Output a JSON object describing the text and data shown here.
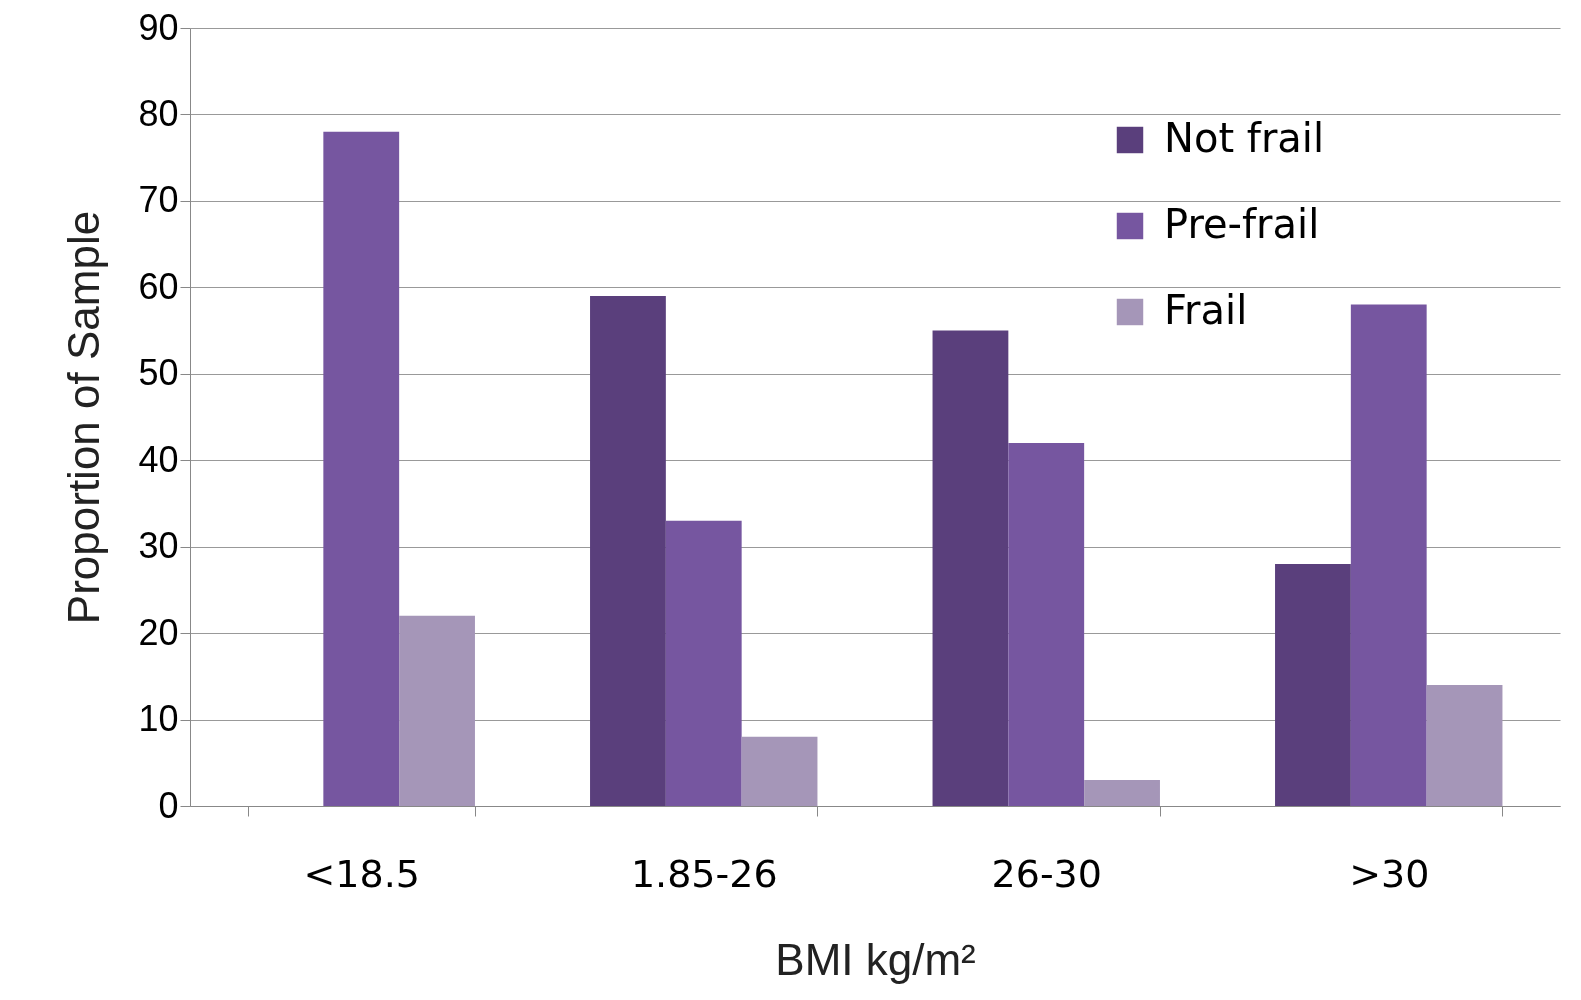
{
  "chart_data": {
    "type": "bar",
    "xlabel": "BMI kg/m²",
    "ylabel": "Proportion of Sample",
    "categories": [
      "<18.5",
      "1.85-26",
      "26-30",
      ">30"
    ],
    "series": [
      {
        "name": "Not frail",
        "color": "#5a3f7c",
        "values": [
          0,
          59,
          55,
          28
        ]
      },
      {
        "name": "Pre-frail",
        "color": "#7656a0",
        "values": [
          78,
          33,
          42,
          58
        ]
      },
      {
        "name": "Frail",
        "color": "#a596b8",
        "values": [
          22,
          8,
          3,
          14
        ]
      }
    ],
    "ylim": [
      0,
      90
    ],
    "yticks": [
      0,
      10,
      20,
      30,
      40,
      50,
      60,
      70,
      80,
      90
    ],
    "grid": "y",
    "legend": "top right"
  }
}
